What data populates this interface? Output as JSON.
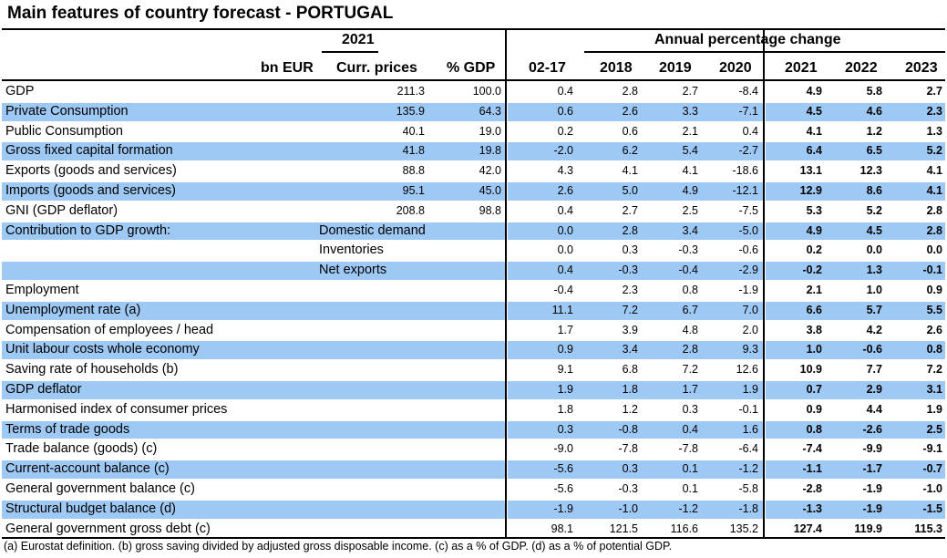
{
  "title": "Main features of country forecast - PORTUGAL",
  "header": {
    "group_2021": "2021",
    "group_annual": "Annual percentage change",
    "col_bneur": "bn EUR",
    "col_curr": "Curr. prices",
    "col_pgdp": "% GDP",
    "col_0217": "02-17",
    "col_2018": "2018",
    "col_2019": "2019",
    "col_2020": "2020",
    "col_2021": "2021",
    "col_2022": "2022",
    "col_2023": "2023"
  },
  "rows": [
    {
      "label": "GDP",
      "sub": "",
      "curr": "211.3",
      "pgdp": "100.0",
      "v0217": "0.4",
      "v2018": "2.8",
      "v2019": "2.7",
      "v2020": "-8.4",
      "v2021": "4.9",
      "v2022": "5.8",
      "v2023": "2.7",
      "band": false
    },
    {
      "label": "Private Consumption",
      "sub": "",
      "curr": "135.9",
      "pgdp": "64.3",
      "v0217": "0.6",
      "v2018": "2.6",
      "v2019": "3.3",
      "v2020": "-7.1",
      "v2021": "4.5",
      "v2022": "4.6",
      "v2023": "2.3",
      "band": true
    },
    {
      "label": "Public Consumption",
      "sub": "",
      "curr": "40.1",
      "pgdp": "19.0",
      "v0217": "0.2",
      "v2018": "0.6",
      "v2019": "2.1",
      "v2020": "0.4",
      "v2021": "4.1",
      "v2022": "1.2",
      "v2023": "1.3",
      "band": false
    },
    {
      "label": "Gross fixed capital formation",
      "sub": "",
      "curr": "41.8",
      "pgdp": "19.8",
      "v0217": "-2.0",
      "v2018": "6.2",
      "v2019": "5.4",
      "v2020": "-2.7",
      "v2021": "6.4",
      "v2022": "6.5",
      "v2023": "5.2",
      "band": true
    },
    {
      "label": "Exports (goods and services)",
      "sub": "",
      "curr": "88.8",
      "pgdp": "42.0",
      "v0217": "4.3",
      "v2018": "4.1",
      "v2019": "4.1",
      "v2020": "-18.6",
      "v2021": "13.1",
      "v2022": "12.3",
      "v2023": "4.1",
      "band": false
    },
    {
      "label": "Imports (goods and services)",
      "sub": "",
      "curr": "95.1",
      "pgdp": "45.0",
      "v0217": "2.6",
      "v2018": "5.0",
      "v2019": "4.9",
      "v2020": "-12.1",
      "v2021": "12.9",
      "v2022": "8.6",
      "v2023": "4.1",
      "band": true
    },
    {
      "label": "GNI (GDP deflator)",
      "sub": "",
      "curr": "208.8",
      "pgdp": "98.8",
      "v0217": "0.4",
      "v2018": "2.7",
      "v2019": "2.5",
      "v2020": "-7.5",
      "v2021": "5.3",
      "v2022": "5.2",
      "v2023": "2.8",
      "band": false
    },
    {
      "label": "Contribution to GDP growth:",
      "sub": "Domestic demand",
      "curr": "",
      "pgdp": "",
      "v0217": "0.0",
      "v2018": "2.8",
      "v2019": "3.4",
      "v2020": "-5.0",
      "v2021": "4.9",
      "v2022": "4.5",
      "v2023": "2.8",
      "band": true
    },
    {
      "label": "",
      "sub": "Inventories",
      "curr": "",
      "pgdp": "",
      "v0217": "0.0",
      "v2018": "0.3",
      "v2019": "-0.3",
      "v2020": "-0.6",
      "v2021": "0.2",
      "v2022": "0.0",
      "v2023": "0.0",
      "band": false
    },
    {
      "label": "",
      "sub": "Net exports",
      "curr": "",
      "pgdp": "",
      "v0217": "0.4",
      "v2018": "-0.3",
      "v2019": "-0.4",
      "v2020": "-2.9",
      "v2021": "-0.2",
      "v2022": "1.3",
      "v2023": "-0.1",
      "band": true
    },
    {
      "label": "Employment",
      "sub": "",
      "curr": "",
      "pgdp": "",
      "v0217": "-0.4",
      "v2018": "2.3",
      "v2019": "0.8",
      "v2020": "-1.9",
      "v2021": "2.1",
      "v2022": "1.0",
      "v2023": "0.9",
      "band": false
    },
    {
      "label": "Unemployment rate (a)",
      "sub": "",
      "curr": "",
      "pgdp": "",
      "v0217": "11.1",
      "v2018": "7.2",
      "v2019": "6.7",
      "v2020": "7.0",
      "v2021": "6.6",
      "v2022": "5.7",
      "v2023": "5.5",
      "band": true
    },
    {
      "label": "Compensation of employees / head",
      "sub": "",
      "curr": "",
      "pgdp": "",
      "v0217": "1.7",
      "v2018": "3.9",
      "v2019": "4.8",
      "v2020": "2.0",
      "v2021": "3.8",
      "v2022": "4.2",
      "v2023": "2.6",
      "band": false
    },
    {
      "label": "Unit labour costs whole economy",
      "sub": "",
      "curr": "",
      "pgdp": "",
      "v0217": "0.9",
      "v2018": "3.4",
      "v2019": "2.8",
      "v2020": "9.3",
      "v2021": "1.0",
      "v2022": "-0.6",
      "v2023": "0.8",
      "band": true
    },
    {
      "label": "Saving rate of households (b)",
      "sub": "",
      "curr": "",
      "pgdp": "",
      "v0217": "9.1",
      "v2018": "6.8",
      "v2019": "7.2",
      "v2020": "12.6",
      "v2021": "10.9",
      "v2022": "7.7",
      "v2023": "7.2",
      "band": false
    },
    {
      "label": "GDP deflator",
      "sub": "",
      "curr": "",
      "pgdp": "",
      "v0217": "1.9",
      "v2018": "1.8",
      "v2019": "1.7",
      "v2020": "1.9",
      "v2021": "0.7",
      "v2022": "2.9",
      "v2023": "3.1",
      "band": true
    },
    {
      "label": "Harmonised index of consumer prices",
      "sub": "",
      "curr": "",
      "pgdp": "",
      "v0217": "1.8",
      "v2018": "1.2",
      "v2019": "0.3",
      "v2020": "-0.1",
      "v2021": "0.9",
      "v2022": "4.4",
      "v2023": "1.9",
      "band": false
    },
    {
      "label": "Terms of trade goods",
      "sub": "",
      "curr": "",
      "pgdp": "",
      "v0217": "0.3",
      "v2018": "-0.8",
      "v2019": "0.4",
      "v2020": "1.6",
      "v2021": "0.8",
      "v2022": "-2.6",
      "v2023": "2.5",
      "band": true
    },
    {
      "label": "Trade balance (goods) (c)",
      "sub": "",
      "curr": "",
      "pgdp": "",
      "v0217": "-9.0",
      "v2018": "-7.8",
      "v2019": "-7.8",
      "v2020": "-6.4",
      "v2021": "-7.4",
      "v2022": "-9.9",
      "v2023": "-9.1",
      "band": false
    },
    {
      "label": "Current-account balance (c)",
      "sub": "",
      "curr": "",
      "pgdp": "",
      "v0217": "-5.6",
      "v2018": "0.3",
      "v2019": "0.1",
      "v2020": "-1.2",
      "v2021": "-1.1",
      "v2022": "-1.7",
      "v2023": "-0.7",
      "band": true
    },
    {
      "label": "General government balance (c)",
      "sub": "",
      "curr": "",
      "pgdp": "",
      "v0217": "-5.6",
      "v2018": "-0.3",
      "v2019": "0.1",
      "v2020": "-5.8",
      "v2021": "-2.8",
      "v2022": "-1.9",
      "v2023": "-1.0",
      "band": false
    },
    {
      "label": "Structural budget balance (d)",
      "sub": "",
      "curr": "",
      "pgdp": "",
      "v0217": "-1.9",
      "v2018": "-1.0",
      "v2019": "-1.2",
      "v2020": "-1.8",
      "v2021": "-1.3",
      "v2022": "-1.9",
      "v2023": "-1.5",
      "band": true
    },
    {
      "label": "General government gross debt (c)",
      "sub": "",
      "curr": "",
      "pgdp": "",
      "v0217": "98.1",
      "v2018": "121.5",
      "v2019": "116.6",
      "v2020": "135.2",
      "v2021": "127.4",
      "v2022": "119.9",
      "v2023": "115.3",
      "band": false
    }
  ],
  "footnote": "(a) Eurostat definition.  (b) gross saving divided by adjusted gross disposable income.  (c) as a % of GDP. (d) as a % of potential GDP."
}
